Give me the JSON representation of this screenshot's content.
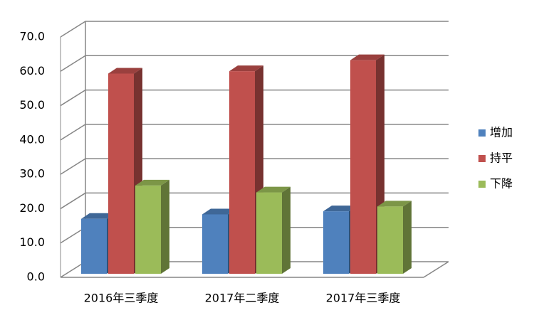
{
  "chart_data": {
    "type": "bar3d",
    "categories": [
      "2016年三季度",
      "2017年二季度",
      "2017年三季度"
    ],
    "series": [
      {
        "name": "增加",
        "color": "#4f81bd",
        "values": [
          16.0,
          17.3,
          18.2
        ]
      },
      {
        "name": "持平",
        "color": "#c0504d",
        "values": [
          58.3,
          59.0,
          62.2
        ]
      },
      {
        "name": "下降",
        "color": "#9bbb59",
        "values": [
          25.7,
          23.7,
          19.6
        ]
      }
    ],
    "ylim": [
      0,
      70
    ],
    "yticks": [
      {
        "value": 0,
        "label": "0.0"
      },
      {
        "value": 10,
        "label": "10.0"
      },
      {
        "value": 20,
        "label": "20.0"
      },
      {
        "value": 30,
        "label": "30.0"
      },
      {
        "value": 40,
        "label": "40.0"
      },
      {
        "value": 50,
        "label": "50.0"
      },
      {
        "value": 60,
        "label": "60.0"
      },
      {
        "value": 70,
        "label": "70.0"
      }
    ],
    "grid": true,
    "legend": "right"
  }
}
